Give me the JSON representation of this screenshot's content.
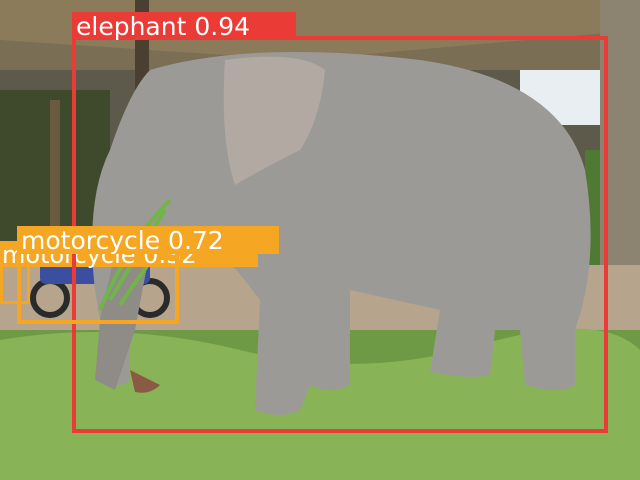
{
  "detections": [
    {
      "class_name": "motorcycle",
      "score": "0.32",
      "color": "#f5a623"
    },
    {
      "class_name": "elephant",
      "score": "0.94",
      "color": "#ea3b36"
    },
    {
      "class_name": "motorcycle",
      "score": "0.72",
      "color": "#f5a623"
    }
  ]
}
